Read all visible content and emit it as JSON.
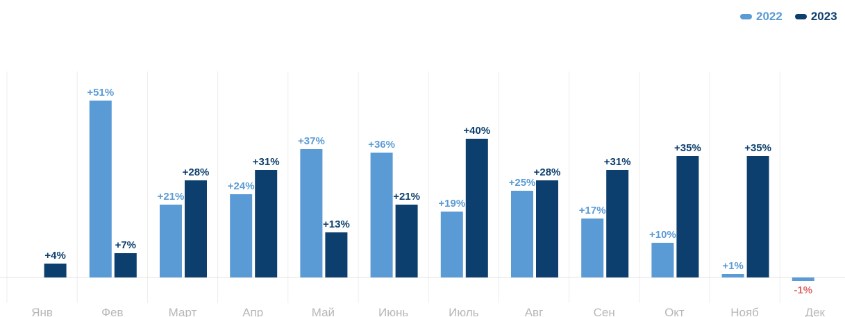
{
  "chart_data": {
    "type": "bar",
    "categories": [
      "Янв",
      "Фев",
      "Март",
      "Апр",
      "Май",
      "Июнь",
      "Июль",
      "Авг",
      "Сен",
      "Окт",
      "Нояб",
      "Дек"
    ],
    "series": [
      {
        "name": "2022",
        "color": "#5b9bd5",
        "values": [
          null,
          51,
          21,
          24,
          37,
          36,
          19,
          25,
          17,
          10,
          1,
          -1
        ],
        "labels": [
          "",
          "+51%",
          "+21%",
          "+24%",
          "+37%",
          "+36%",
          "+19%",
          "+25%",
          "+17%",
          "+10%",
          "+1%",
          "-1%"
        ]
      },
      {
        "name": "2023",
        "color": "#0d3f6e",
        "values": [
          4,
          7,
          28,
          31,
          13,
          21,
          40,
          28,
          31,
          35,
          35,
          null
        ],
        "labels": [
          "+4%",
          "+7%",
          "+28%",
          "+31%",
          "+13%",
          "+21%",
          "+40%",
          "+28%",
          "+31%",
          "+35%",
          "+35%",
          ""
        ]
      }
    ],
    "negative_label_color": "#e06666",
    "ylim": [
      -3,
      54
    ],
    "grid": "vertical separators between months",
    "legend": "top-right"
  }
}
